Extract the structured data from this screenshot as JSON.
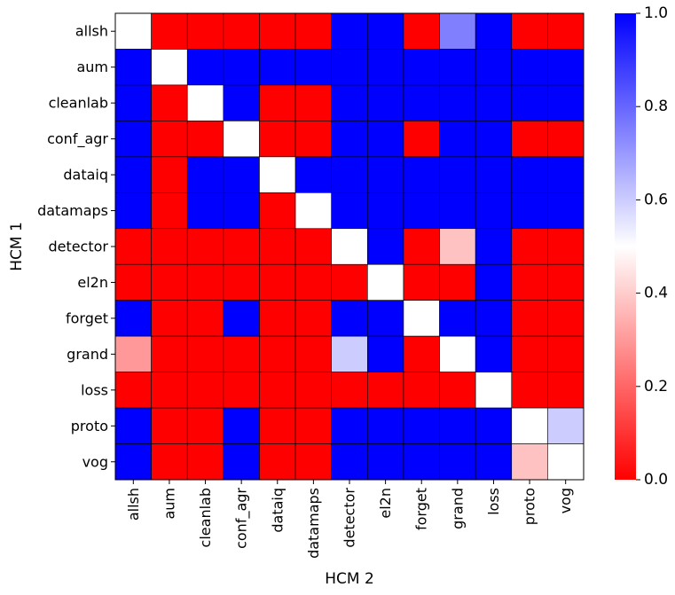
{
  "chart_data": {
    "type": "heatmap",
    "title": "",
    "xlabel": "HCM 2",
    "ylabel": "HCM 1",
    "rows": [
      "allsh",
      "aum",
      "cleanlab",
      "conf_agr",
      "dataiq",
      "datamaps",
      "detector",
      "el2n",
      "forget",
      "grand",
      "loss",
      "proto",
      "vog"
    ],
    "columns": [
      "allsh",
      "aum",
      "cleanlab",
      "conf_agr",
      "dataiq",
      "datamaps",
      "detector",
      "el2n",
      "forget",
      "grand",
      "loss",
      "proto",
      "vog"
    ],
    "values": [
      [
        0.5,
        0,
        0,
        0,
        0,
        0,
        1,
        1,
        0,
        0.75,
        1,
        0,
        0
      ],
      [
        1,
        0.5,
        1,
        1,
        1,
        1,
        1,
        1,
        1,
        1,
        1,
        1,
        1
      ],
      [
        1,
        0,
        0.5,
        1,
        0,
        0,
        1,
        1,
        1,
        1,
        1,
        1,
        1
      ],
      [
        1,
        0,
        0,
        0.5,
        0,
        0,
        1,
        1,
        0,
        1,
        1,
        0,
        0
      ],
      [
        1,
        0,
        1,
        1,
        0.5,
        1,
        1,
        1,
        1,
        1,
        1,
        1,
        1
      ],
      [
        1,
        0,
        1,
        1,
        0,
        0.5,
        1,
        1,
        1,
        1,
        1,
        1,
        1
      ],
      [
        0,
        0,
        0,
        0,
        0,
        0,
        0.5,
        1,
        0,
        0.38,
        1,
        0,
        0
      ],
      [
        0,
        0,
        0,
        0,
        0,
        0,
        0,
        0.5,
        0,
        0,
        1,
        0,
        0
      ],
      [
        1,
        0,
        0,
        1,
        0,
        0,
        1,
        1,
        0.5,
        1,
        1,
        0,
        0
      ],
      [
        0.3,
        0,
        0,
        0,
        0,
        0,
        0.6,
        1,
        0,
        0.5,
        1,
        0,
        0
      ],
      [
        0,
        0,
        0,
        0,
        0,
        0,
        0,
        0,
        0,
        0,
        0.5,
        0,
        0
      ],
      [
        1,
        0,
        0,
        1,
        0,
        0,
        1,
        1,
        1,
        1,
        1,
        0.5,
        0.6
      ],
      [
        1,
        0,
        0,
        1,
        0,
        0,
        1,
        1,
        1,
        1,
        1,
        0.38,
        0.5
      ]
    ],
    "colormap": [
      "#ff0000",
      "#ffffff",
      "#0000ff"
    ],
    "value_range": [
      0.0,
      1.0
    ],
    "colorbar_ticks": [
      "0.0",
      "0.2",
      "0.4",
      "0.6",
      "0.8",
      "1.0"
    ],
    "legend": "colorbar-right"
  }
}
